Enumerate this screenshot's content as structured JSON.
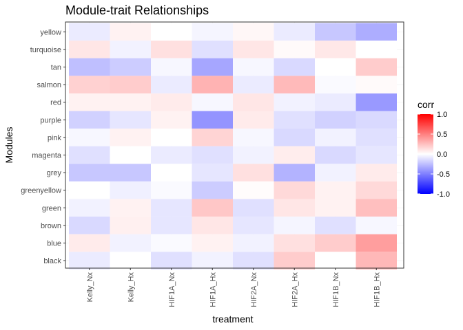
{
  "chart_data": {
    "type": "heatmap",
    "title": "Module-trait Relationships",
    "xlabel": "treatment",
    "ylabel": "Modules",
    "x_categories": [
      "Kelly_Nx",
      "Kelly_Hx",
      "HIF1A_Nx",
      "HIF1A_Hx",
      "HIF2A_Nx",
      "HIF2A_Hx",
      "HIF1B_Nx",
      "HIF1B_Hx"
    ],
    "y_categories": [
      "yellow",
      "turquoise",
      "tan",
      "salmon",
      "red",
      "purple",
      "pink",
      "magenta",
      "grey",
      "greenyellow",
      "green",
      "brown",
      "blue",
      "black"
    ],
    "values": [
      [
        -0.08,
        0.05,
        0.0,
        -0.04,
        0.03,
        -0.08,
        -0.22,
        -0.32
      ],
      [
        0.1,
        -0.05,
        0.12,
        -0.12,
        0.1,
        0.02,
        0.09,
        0.0
      ],
      [
        -0.25,
        -0.2,
        -0.03,
        -0.35,
        -0.03,
        -0.15,
        0.0,
        0.2
      ],
      [
        0.18,
        0.2,
        -0.08,
        0.3,
        -0.08,
        0.27,
        -0.02,
        0.02
      ],
      [
        0.05,
        0.05,
        0.08,
        -0.03,
        0.1,
        -0.05,
        -0.08,
        -0.4
      ],
      [
        -0.18,
        -0.1,
        0.05,
        -0.42,
        0.08,
        -0.12,
        -0.18,
        -0.15
      ],
      [
        -0.03,
        0.05,
        0.0,
        0.17,
        -0.03,
        -0.15,
        -0.05,
        -0.12
      ],
      [
        -0.12,
        0.0,
        -0.08,
        -0.12,
        -0.05,
        0.07,
        -0.15,
        -0.1
      ],
      [
        -0.22,
        -0.22,
        0.0,
        -0.1,
        0.12,
        -0.3,
        -0.05,
        0.08
      ],
      [
        0.0,
        -0.06,
        -0.02,
        -0.2,
        0.01,
        0.15,
        0.05,
        0.15
      ],
      [
        -0.05,
        0.05,
        -0.1,
        0.22,
        -0.12,
        0.1,
        0.05,
        0.25
      ],
      [
        -0.15,
        0.06,
        -0.1,
        0.1,
        -0.1,
        -0.04,
        -0.12,
        -0.03
      ],
      [
        0.08,
        -0.05,
        -0.02,
        0.05,
        -0.05,
        0.12,
        0.2,
        0.38
      ],
      [
        -0.08,
        0.0,
        -0.12,
        -0.05,
        -0.12,
        0.2,
        0.0,
        0.28
      ]
    ],
    "legend": {
      "title": "corr",
      "ticks": [
        "1.0",
        "0.5",
        "0.0",
        "-0.5",
        "-1.0"
      ],
      "range": [
        -1,
        1
      ],
      "low_color": "#0000FF",
      "mid_color": "#FFFFFF",
      "high_color": "#FF0000"
    },
    "grid": true,
    "legend_position": "right"
  }
}
